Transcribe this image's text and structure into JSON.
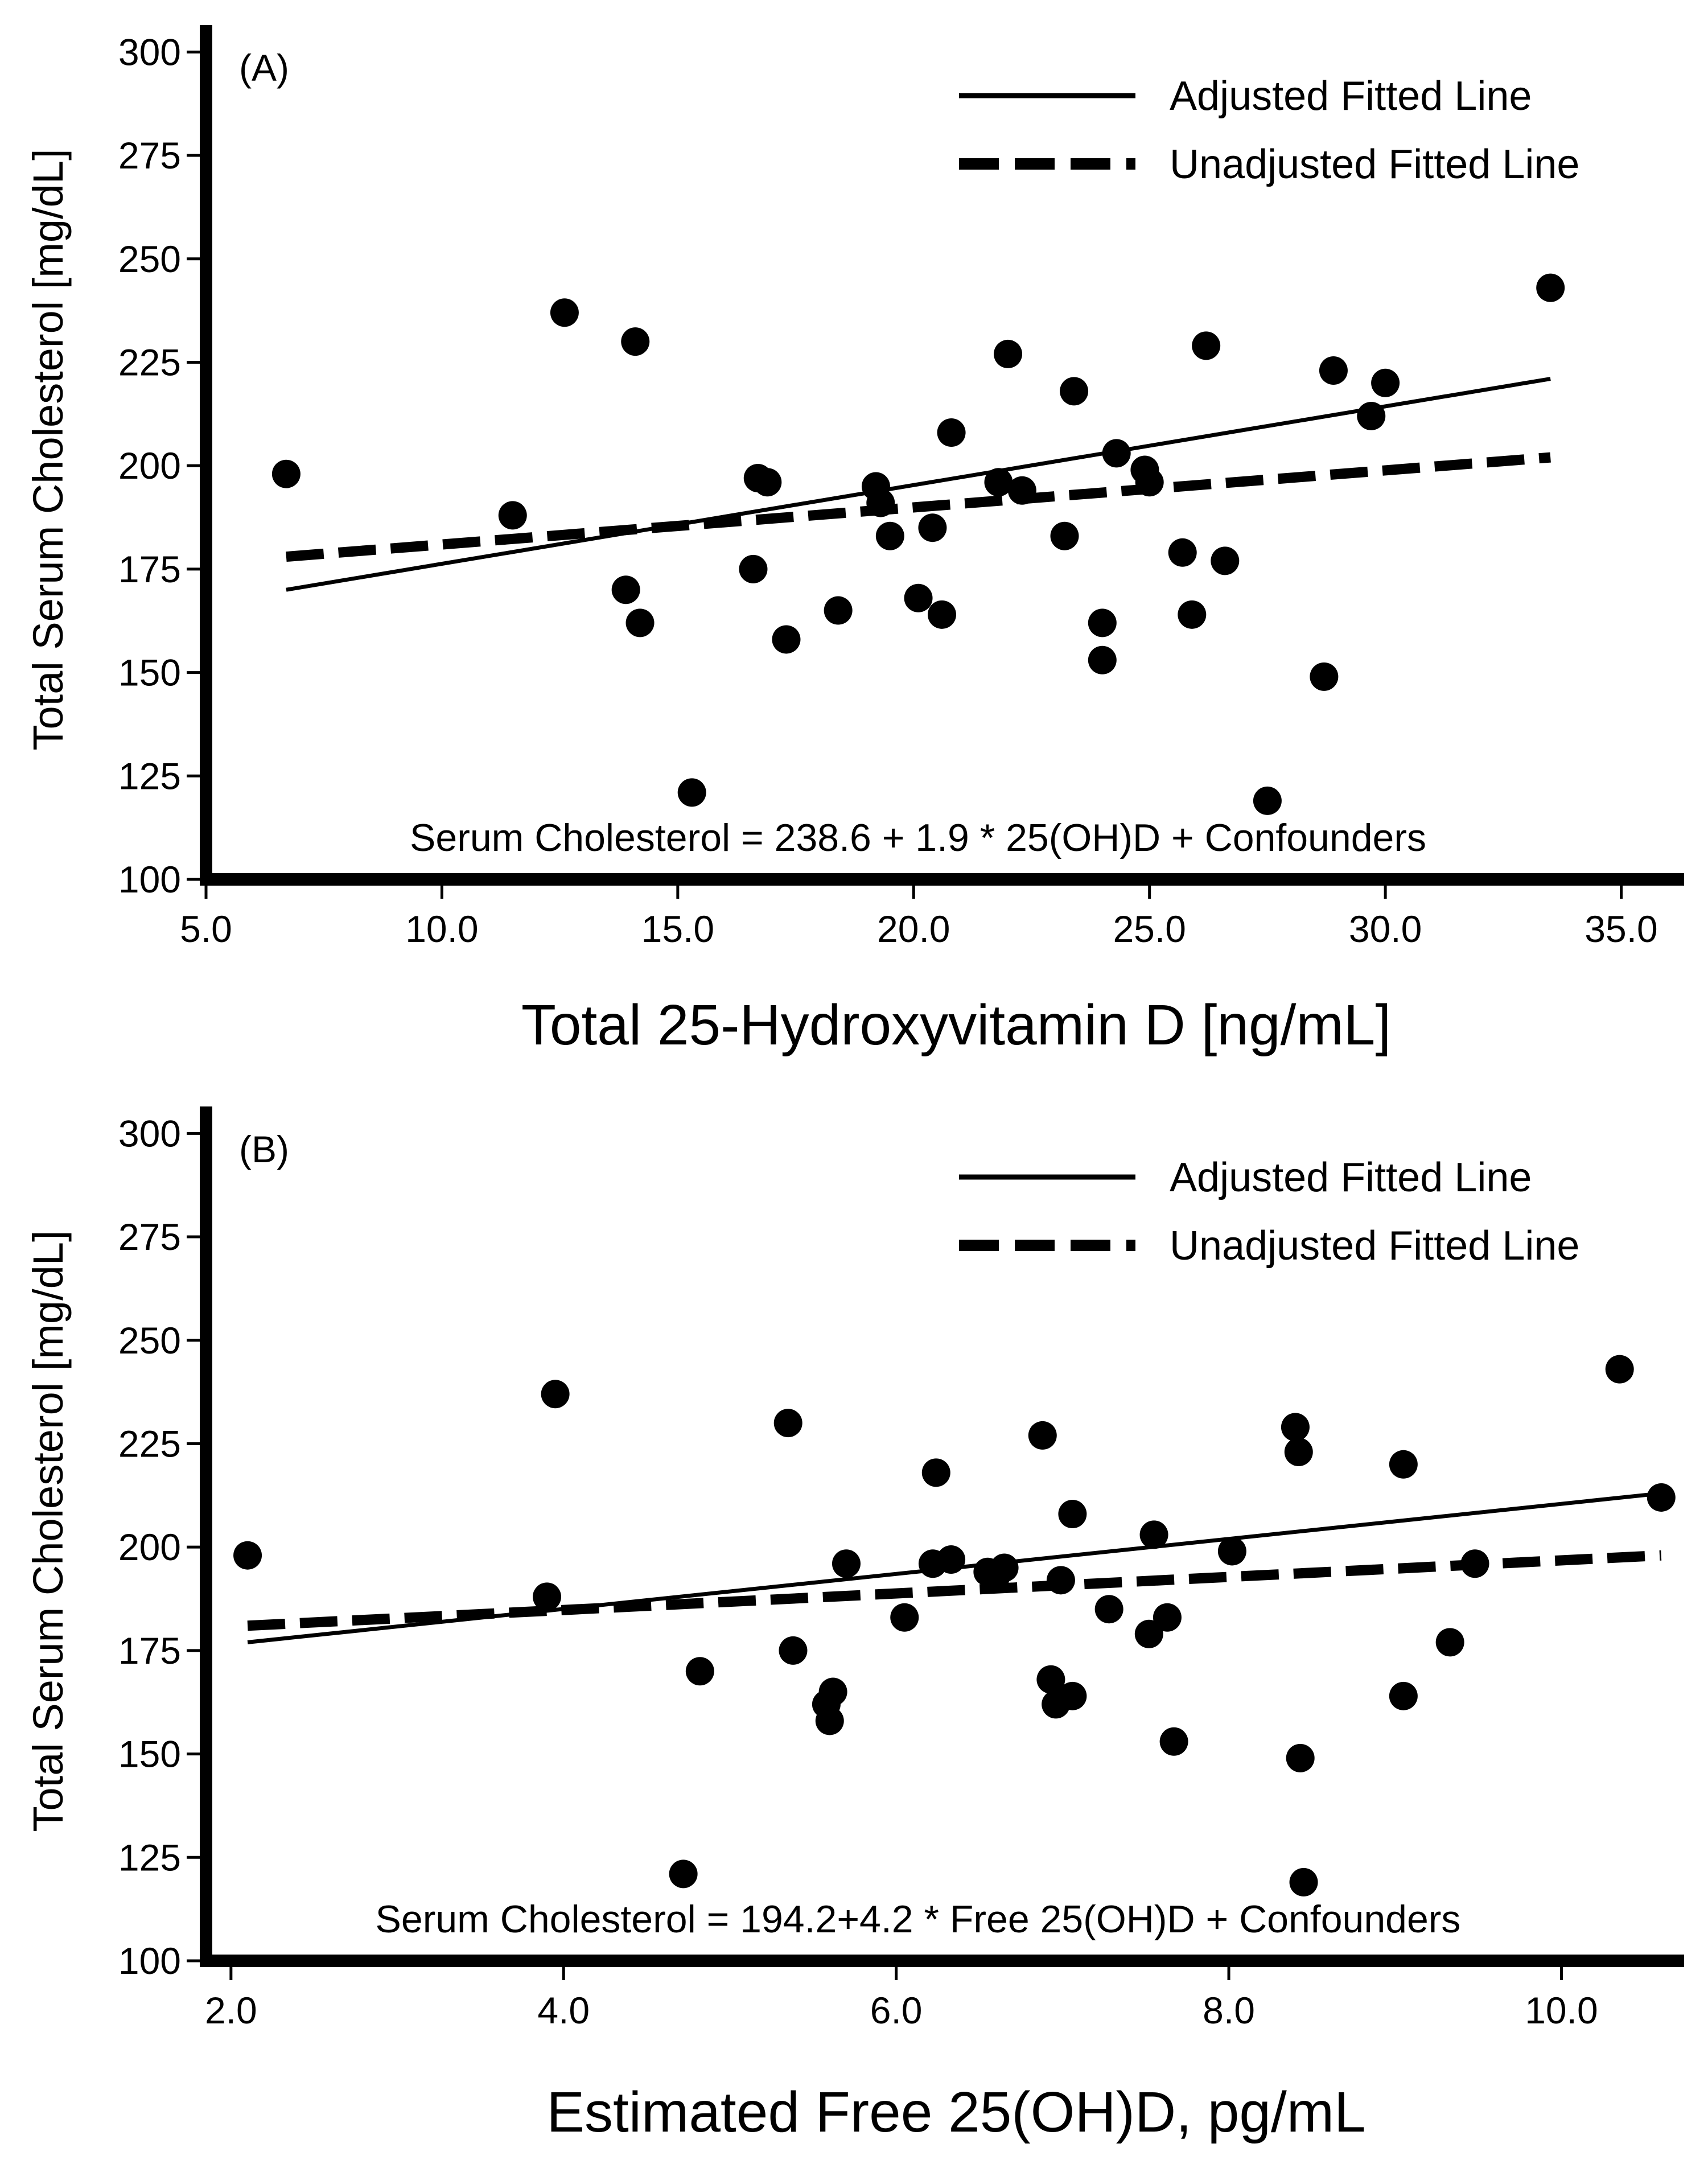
{
  "chart_data": [
    {
      "type": "scatter",
      "panel_label": "(A)",
      "xlabel": "Total 25-Hydroxyvitamin D [ng/mL]",
      "ylabel": "Total Serum Cholesterol [mg/dL]",
      "xlim": [
        5,
        36.2
      ],
      "ylim": [
        100,
        305
      ],
      "xticks": [
        5,
        10,
        15,
        20,
        25,
        30,
        35
      ],
      "xtick_labels": [
        "5.0",
        "10.0",
        "15.0",
        "20.0",
        "25.0",
        "30.0",
        "35.0"
      ],
      "yticks": [
        100,
        125,
        150,
        175,
        200,
        225,
        250,
        275,
        300
      ],
      "ytick_labels": [
        "100",
        "125",
        "150",
        "175",
        "200",
        "225",
        "250",
        "275",
        "300"
      ],
      "legend": {
        "position": "top-right",
        "entries": [
          {
            "label": "Adjusted Fitted Line",
            "style": "solid"
          },
          {
            "label": "Unadjusted Fitted Line",
            "style": "dashed"
          }
        ]
      },
      "annotation": "Serum Cholesterol = 238.6 + 1.9 * 25(OH)D + Confounders",
      "points": [
        [
          6.7,
          198
        ],
        [
          11.5,
          188
        ],
        [
          12.6,
          237
        ],
        [
          13.9,
          170
        ],
        [
          14.1,
          230
        ],
        [
          14.2,
          162
        ],
        [
          15.3,
          121
        ],
        [
          16.6,
          175
        ],
        [
          16.7,
          197
        ],
        [
          16.9,
          196
        ],
        [
          17.3,
          158
        ],
        [
          18.4,
          165
        ],
        [
          19.2,
          195
        ],
        [
          19.3,
          191
        ],
        [
          19.5,
          183
        ],
        [
          20.1,
          168
        ],
        [
          20.4,
          185
        ],
        [
          20.6,
          164
        ],
        [
          20.8,
          208
        ],
        [
          21.8,
          196
        ],
        [
          22.0,
          227
        ],
        [
          22.3,
          194
        ],
        [
          23.2,
          183
        ],
        [
          23.4,
          218
        ],
        [
          24.0,
          162
        ],
        [
          24.0,
          153
        ],
        [
          24.3,
          203
        ],
        [
          24.9,
          199
        ],
        [
          25.0,
          196
        ],
        [
          25.7,
          179
        ],
        [
          25.9,
          164
        ],
        [
          26.2,
          229
        ],
        [
          26.6,
          177
        ],
        [
          27.5,
          119
        ],
        [
          28.7,
          149
        ],
        [
          28.9,
          223
        ],
        [
          29.7,
          212
        ],
        [
          30.0,
          220
        ],
        [
          33.5,
          243
        ]
      ],
      "fitted_lines": [
        {
          "name": "Adjusted Fitted Line",
          "style": "solid",
          "x": [
            6.7,
            33.5
          ],
          "y": [
            170,
            221
          ]
        },
        {
          "name": "Unadjusted Fitted Line",
          "style": "dashed",
          "x": [
            6.7,
            33.5
          ],
          "y": [
            178,
            202
          ]
        }
      ]
    },
    {
      "type": "scatter",
      "panel_label": "(B)",
      "xlabel": "Estimated Free 25(OH)D, pg/mL",
      "ylabel": "Total Serum Cholesterol [mg/dL]",
      "xlim": [
        1.85,
        10.7
      ],
      "ylim": [
        100,
        305
      ],
      "xticks": [
        2,
        4,
        6,
        8,
        10
      ],
      "xtick_labels": [
        "2.0",
        "4.0",
        "6.0",
        "8.0",
        "10.0"
      ],
      "yticks": [
        100,
        125,
        150,
        175,
        200,
        225,
        250,
        275,
        300
      ],
      "ytick_labels": [
        "100",
        "125",
        "150",
        "175",
        "200",
        "225",
        "250",
        "275",
        "300"
      ],
      "legend": {
        "position": "top-right",
        "entries": [
          {
            "label": "Adjusted Fitted Line",
            "style": "solid"
          },
          {
            "label": "Unadjusted Fitted Line",
            "style": "dashed"
          }
        ]
      },
      "annotation": "Serum Cholesterol = 194.2+4.2 * Free 25(OH)D + Confounders",
      "points": [
        [
          2.1,
          198
        ],
        [
          3.9,
          188
        ],
        [
          3.95,
          237
        ],
        [
          4.72,
          121
        ],
        [
          4.82,
          170
        ],
        [
          5.35,
          230
        ],
        [
          5.38,
          175
        ],
        [
          5.58,
          162
        ],
        [
          5.62,
          165
        ],
        [
          5.6,
          158
        ],
        [
          5.7,
          196
        ],
        [
          6.05,
          183
        ],
        [
          6.22,
          196
        ],
        [
          6.24,
          218
        ],
        [
          6.33,
          197
        ],
        [
          6.55,
          194
        ],
        [
          6.6,
          193
        ],
        [
          6.65,
          195
        ],
        [
          6.88,
          227
        ],
        [
          6.93,
          168
        ],
        [
          6.96,
          162
        ],
        [
          6.99,
          192
        ],
        [
          7.06,
          164
        ],
        [
          7.06,
          208
        ],
        [
          7.28,
          185
        ],
        [
          7.52,
          179
        ],
        [
          7.55,
          203
        ],
        [
          7.63,
          183
        ],
        [
          7.67,
          153
        ],
        [
          8.02,
          199
        ],
        [
          8.4,
          229
        ],
        [
          8.42,
          223
        ],
        [
          8.43,
          149
        ],
        [
          8.45,
          119
        ],
        [
          9.05,
          220
        ],
        [
          9.05,
          164
        ],
        [
          9.33,
          177
        ],
        [
          9.48,
          196
        ],
        [
          10.35,
          243
        ],
        [
          10.6,
          212
        ]
      ],
      "fitted_lines": [
        {
          "name": "Adjusted Fitted Line",
          "style": "solid",
          "x": [
            2.1,
            10.6
          ],
          "y": [
            177,
            213
          ]
        },
        {
          "name": "Unadjusted Fitted Line",
          "style": "dashed",
          "x": [
            2.1,
            10.6
          ],
          "y": [
            181,
            198
          ]
        }
      ]
    }
  ]
}
